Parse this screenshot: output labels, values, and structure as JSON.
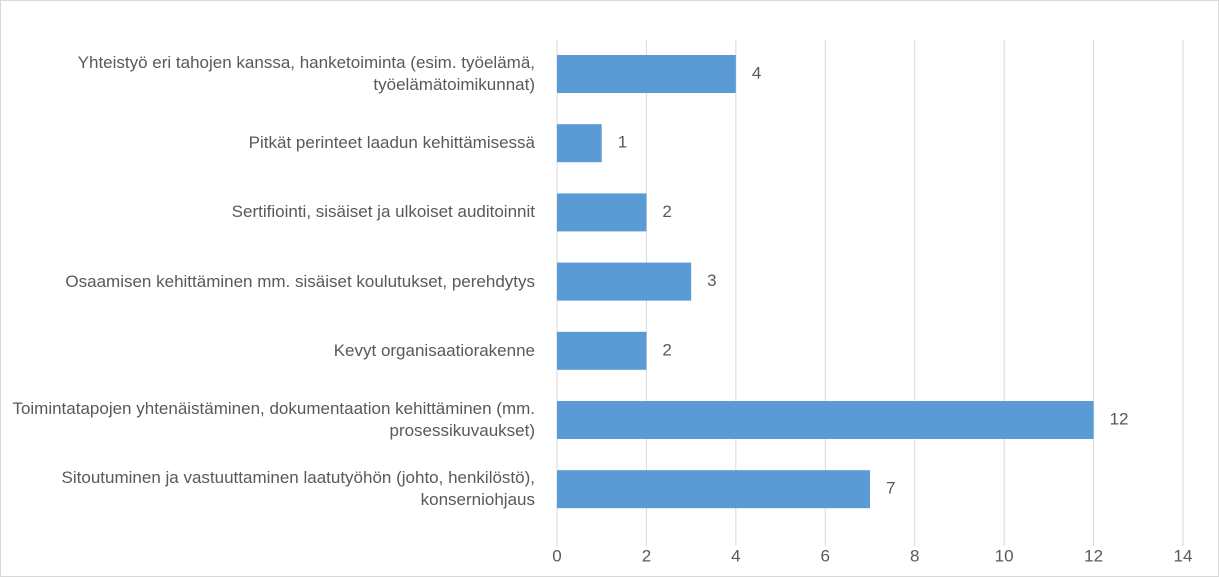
{
  "chart_data": {
    "type": "barh",
    "categories": [
      "Yhteistyö eri tahojen kanssa, hanketoiminta (esim. työelämä, työelämätoimikunnat)",
      "Pitkät perinteet laadun kehittämisessä",
      "Sertifiointi, sisäiset ja ulkoiset auditoinnit",
      "Osaamisen kehittäminen mm. sisäiset koulutukset, perehdytys",
      "Kevyt organisaatiorakenne",
      "Toimintatapojen yhtenäistäminen, dokumentaation kehittäminen (mm. prosessikuvaukset)",
      "Sitoutuminen ja vastuuttaminen laatutyöhön (johto, henkilöstö), konserniohjaus"
    ],
    "values": [
      4,
      1,
      2,
      3,
      2,
      12,
      7
    ],
    "color": "#5b9bd5",
    "xlim": [
      0,
      14
    ],
    "xticks": [
      0,
      2,
      4,
      6,
      8,
      10,
      12,
      14
    ],
    "grid": true
  }
}
